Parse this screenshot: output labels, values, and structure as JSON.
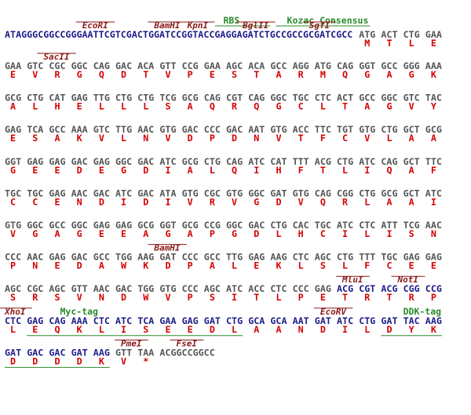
{
  "header": {
    "rbs": "RBS",
    "kozak": "Kozac Consensus"
  },
  "lines": [
    {
      "prefix": "ATAGGGCGGCCGGGAATTCGTCGACTGGATCCGGTACCGAGGAGATCTGCCGCCGCGATCGCC",
      "codons": [
        "ATG",
        "ACT",
        "CTG",
        "GAA"
      ],
      "aa": [
        "M",
        "T",
        "L",
        "E"
      ],
      "sites": [
        "EcoRI",
        "BamHI",
        "KpnI",
        "BglII",
        "SgfI"
      ]
    },
    {
      "codons": [
        "GAA",
        "GTC",
        "CGC",
        "GGC",
        "CAG",
        "GAC",
        "ACA",
        "GTT",
        "CCG",
        "GAA",
        "AGC",
        "ACA",
        "GCC",
        "AGG",
        "ATG",
        "CAG",
        "GGT",
        "GCC",
        "GGG",
        "AAA"
      ],
      "aa": [
        "E",
        "V",
        "R",
        "G",
        "Q",
        "D",
        "T",
        "V",
        "P",
        "E",
        "S",
        "T",
        "A",
        "R",
        "M",
        "Q",
        "G",
        "A",
        "G",
        "K"
      ],
      "sites": [
        "SacII"
      ]
    },
    {
      "codons": [
        "GCG",
        "CTG",
        "CAT",
        "GAG",
        "TTG",
        "CTG",
        "CTG",
        "TCG",
        "GCG",
        "CAG",
        "CGT",
        "CAG",
        "GGC",
        "TGC",
        "CTC",
        "ACT",
        "GCC",
        "GGC",
        "GTC",
        "TAC"
      ],
      "aa": [
        "A",
        "L",
        "H",
        "E",
        "L",
        "L",
        "L",
        "S",
        "A",
        "Q",
        "R",
        "Q",
        "G",
        "C",
        "L",
        "T",
        "A",
        "G",
        "V",
        "Y"
      ]
    },
    {
      "codons": [
        "GAG",
        "TCA",
        "GCC",
        "AAA",
        "GTC",
        "TTG",
        "AAC",
        "GTG",
        "GAC",
        "CCC",
        "GAC",
        "AAT",
        "GTG",
        "ACC",
        "TTC",
        "TGT",
        "GTG",
        "CTG",
        "GCT",
        "GCG"
      ],
      "aa": [
        "E",
        "S",
        "A",
        "K",
        "V",
        "L",
        "N",
        "V",
        "D",
        "P",
        "D",
        "N",
        "V",
        "T",
        "F",
        "C",
        "V",
        "L",
        "A",
        "A"
      ]
    },
    {
      "codons": [
        "GGT",
        "GAG",
        "GAG",
        "GAC",
        "GAG",
        "GGC",
        "GAC",
        "ATC",
        "GCG",
        "CTG",
        "CAG",
        "ATC",
        "CAT",
        "TTT",
        "ACG",
        "CTG",
        "ATC",
        "CAG",
        "GCT",
        "TTC"
      ],
      "aa": [
        "G",
        "E",
        "E",
        "D",
        "E",
        "G",
        "D",
        "I",
        "A",
        "L",
        "Q",
        "I",
        "H",
        "F",
        "T",
        "L",
        "I",
        "Q",
        "A",
        "F"
      ]
    },
    {
      "codons": [
        "TGC",
        "TGC",
        "GAG",
        "AAC",
        "GAC",
        "ATC",
        "GAC",
        "ATA",
        "GTG",
        "CGC",
        "GTG",
        "GGC",
        "GAT",
        "GTG",
        "CAG",
        "CGG",
        "CTG",
        "GCG",
        "GCT",
        "ATC"
      ],
      "aa": [
        "C",
        "C",
        "E",
        "N",
        "D",
        "I",
        "D",
        "I",
        "V",
        "R",
        "V",
        "G",
        "D",
        "V",
        "Q",
        "R",
        "L",
        "A",
        "A",
        "I"
      ]
    },
    {
      "codons": [
        "GTG",
        "GGC",
        "GCC",
        "GGC",
        "GAG",
        "GAG",
        "GCG",
        "GGT",
        "GCG",
        "CCG",
        "GGC",
        "GAC",
        "CTG",
        "CAC",
        "TGC",
        "ATC",
        "CTC",
        "ATT",
        "TCG",
        "AAC"
      ],
      "aa": [
        "V",
        "G",
        "A",
        "G",
        "E",
        "E",
        "A",
        "G",
        "A",
        "P",
        "G",
        "D",
        "L",
        "H",
        "C",
        "I",
        "L",
        "I",
        "S",
        "N"
      ]
    },
    {
      "codons": [
        "CCC",
        "AAC",
        "GAG",
        "GAC",
        "GCC",
        "TGG",
        "AAG",
        "GAT",
        "CCC",
        "GCC",
        "TTG",
        "GAG",
        "AAG",
        "CTC",
        "AGC",
        "CTG",
        "TTT",
        "TGC",
        "GAG",
        "GAG"
      ],
      "aa": [
        "P",
        "N",
        "E",
        "D",
        "A",
        "W",
        "K",
        "D",
        "P",
        "A",
        "L",
        "E",
        "K",
        "L",
        "S",
        "L",
        "F",
        "C",
        "E",
        "E"
      ],
      "sites": [
        "BamHI"
      ]
    },
    {
      "codons": [
        "AGC",
        "CGC",
        "AGC",
        "GTT",
        "AAC",
        "GAC",
        "TGG",
        "GTG",
        "CCC",
        "AGC",
        "ATC",
        "ACC",
        "CTC",
        "CCC",
        "GAG",
        "ACG",
        "CGT",
        "ACG",
        "CGG",
        "CCG"
      ],
      "aa": [
        "S",
        "R",
        "S",
        "V",
        "N",
        "D",
        "W",
        "V",
        "P",
        "S",
        "I",
        "T",
        "L",
        "P",
        "E",
        "T",
        "R",
        "T",
        "R",
        "P"
      ],
      "sites": [
        "MluI",
        "NotI"
      ]
    },
    {
      "codons": [
        "CTC",
        "GAG",
        "CAG",
        "AAA",
        "CTC",
        "ATC",
        "TCA",
        "GAA",
        "GAG",
        "GAT",
        "CTG",
        "GCA",
        "GCA",
        "AAT",
        "GAT",
        "ATC",
        "CTG",
        "GAT",
        "TAC",
        "AAG"
      ],
      "aa": [
        "L",
        "E",
        "Q",
        "K",
        "L",
        "I",
        "S",
        "E",
        "E",
        "D",
        "L",
        "A",
        "A",
        "N",
        "D",
        "I",
        "L",
        "D",
        "Y",
        "K"
      ],
      "sites": [
        "XhoI",
        "EcoRV"
      ],
      "tags": [
        "Myc-tag",
        "DDK-tag"
      ]
    },
    {
      "codons": [
        "GAT",
        "GAC",
        "GAC",
        "GAT",
        "AAG",
        "GTT",
        "TAA"
      ],
      "suffix": "ACGGCCGGCC",
      "aa": [
        "D",
        "D",
        "D",
        "D",
        "K",
        "V",
        "*"
      ],
      "sites": [
        "PmeI",
        "FseI"
      ]
    }
  ]
}
